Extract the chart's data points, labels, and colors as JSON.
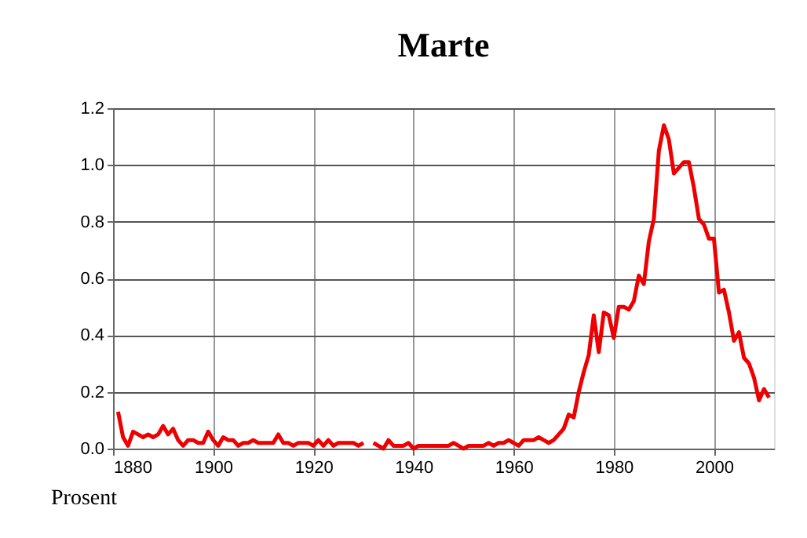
{
  "chart_data": {
    "type": "line",
    "title": "Marte",
    "ylabel": "Prosent",
    "x": [
      1881,
      1882,
      1883,
      1884,
      1885,
      1886,
      1887,
      1888,
      1889,
      1890,
      1891,
      1892,
      1893,
      1894,
      1895,
      1896,
      1897,
      1898,
      1899,
      1900,
      1901,
      1902,
      1903,
      1904,
      1905,
      1906,
      1907,
      1908,
      1909,
      1910,
      1911,
      1912,
      1913,
      1914,
      1915,
      1916,
      1917,
      1918,
      1919,
      1920,
      1921,
      1922,
      1923,
      1924,
      1925,
      1926,
      1927,
      1928,
      1929,
      1930,
      1931,
      1932,
      1933,
      1934,
      1935,
      1936,
      1937,
      1938,
      1939,
      1940,
      1941,
      1942,
      1943,
      1944,
      1945,
      1946,
      1947,
      1948,
      1949,
      1950,
      1951,
      1952,
      1953,
      1954,
      1955,
      1956,
      1957,
      1958,
      1959,
      1960,
      1961,
      1962,
      1963,
      1964,
      1965,
      1966,
      1967,
      1968,
      1969,
      1970,
      1971,
      1972,
      1973,
      1974,
      1975,
      1976,
      1977,
      1978,
      1979,
      1980,
      1981,
      1982,
      1983,
      1984,
      1985,
      1986,
      1987,
      1988,
      1989,
      1990,
      1991,
      1992,
      1993,
      1994,
      1995,
      1996,
      1997,
      1998,
      1999,
      2000,
      2001,
      2002,
      2003,
      2004,
      2005,
      2006,
      2007,
      2008,
      2009,
      2010,
      2011
    ],
    "series": [
      {
        "color": "#ee0000",
        "values": [
          0.13,
          0.04,
          0.01,
          0.06,
          0.05,
          0.04,
          0.05,
          0.04,
          0.05,
          0.08,
          0.05,
          0.07,
          0.03,
          0.01,
          0.03,
          0.03,
          0.02,
          0.02,
          0.06,
          0.03,
          0.01,
          0.04,
          0.03,
          0.03,
          0.01,
          0.02,
          0.02,
          0.03,
          0.02,
          0.02,
          0.02,
          0.02,
          0.05,
          0.02,
          0.02,
          0.01,
          0.02,
          0.02,
          0.02,
          0.01,
          0.03,
          0.01,
          0.03,
          0.01,
          0.02,
          0.02,
          0.02,
          0.02,
          0.01,
          0.02,
          null,
          0.02,
          0.01,
          0.0,
          0.03,
          0.01,
          0.01,
          0.01,
          0.02,
          0.0,
          0.01,
          0.01,
          0.01,
          0.01,
          0.01,
          0.01,
          0.01,
          0.02,
          0.01,
          0.0,
          0.01,
          0.01,
          0.01,
          0.01,
          0.02,
          0.01,
          0.02,
          0.02,
          0.03,
          0.02,
          0.01,
          0.03,
          0.03,
          0.03,
          0.04,
          0.03,
          0.02,
          0.03,
          0.05,
          0.07,
          0.12,
          0.11,
          0.2,
          0.27,
          0.33,
          0.47,
          0.34,
          0.48,
          0.47,
          0.39,
          0.5,
          0.5,
          0.49,
          0.52,
          0.61,
          0.58,
          0.73,
          0.81,
          1.05,
          1.14,
          1.09,
          0.97,
          0.99,
          1.01,
          1.01,
          0.92,
          0.81,
          0.79,
          0.74,
          0.74,
          0.55,
          0.56,
          0.48,
          0.38,
          0.41,
          0.32,
          0.3,
          0.25,
          0.17,
          0.21,
          0.18
        ]
      }
    ],
    "xlim": [
      1880,
      2012
    ],
    "xticks": [
      1880,
      1900,
      1920,
      1940,
      1960,
      1980,
      2000
    ],
    "ylim": [
      0,
      1.2
    ],
    "yticks": [
      {
        "value": 0,
        "label": "0.0"
      },
      0.2,
      0.4,
      0.6,
      0.8,
      {
        "value": 1,
        "label": "1.0"
      },
      1.2
    ],
    "grid": true,
    "legend": false,
    "line_style": "solid",
    "marker": "none"
  }
}
